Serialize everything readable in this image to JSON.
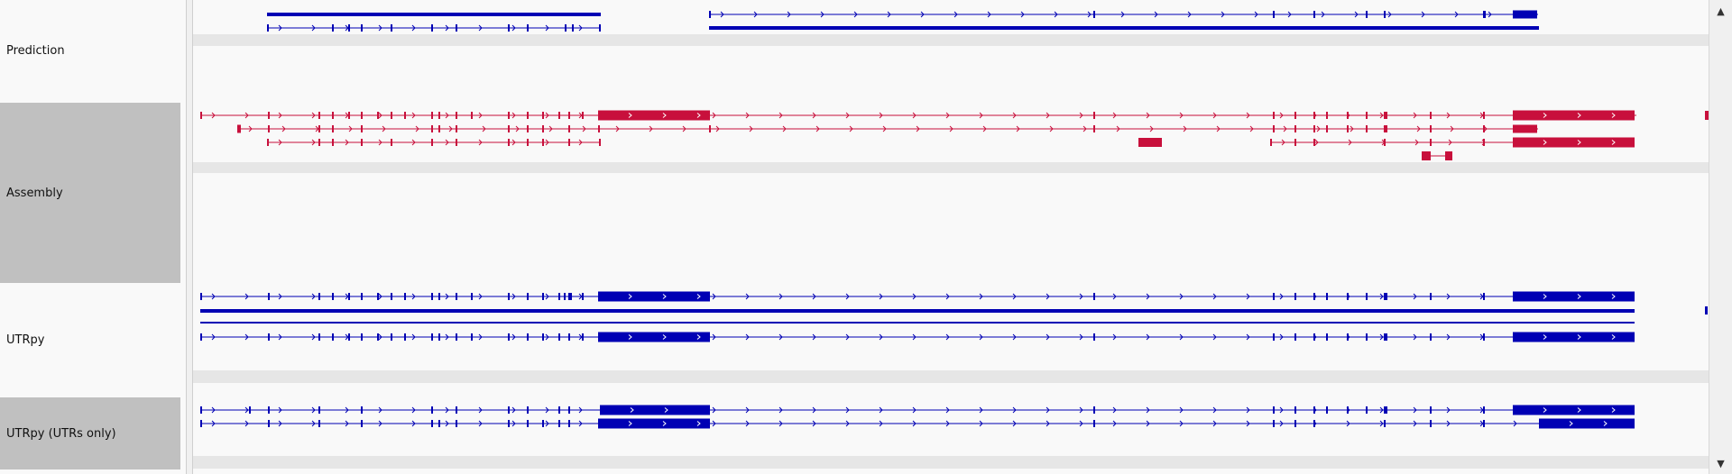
{
  "tracks": {
    "prediction": {
      "name": "Prediction"
    },
    "assembly": {
      "name": "Assembly"
    },
    "utrpy": {
      "name": "UTRpy"
    },
    "utrpy_utrs": {
      "name": "UTRpy (UTRs only)"
    }
  },
  "colors": {
    "blue": "#0000b4",
    "red": "#c8103c",
    "gap": "#e6e6e6",
    "selected": "#c0c0c0"
  },
  "scrollbar": {
    "up_icon": "chevron-up-icon",
    "down_icon": "chevron-down-icon"
  }
}
